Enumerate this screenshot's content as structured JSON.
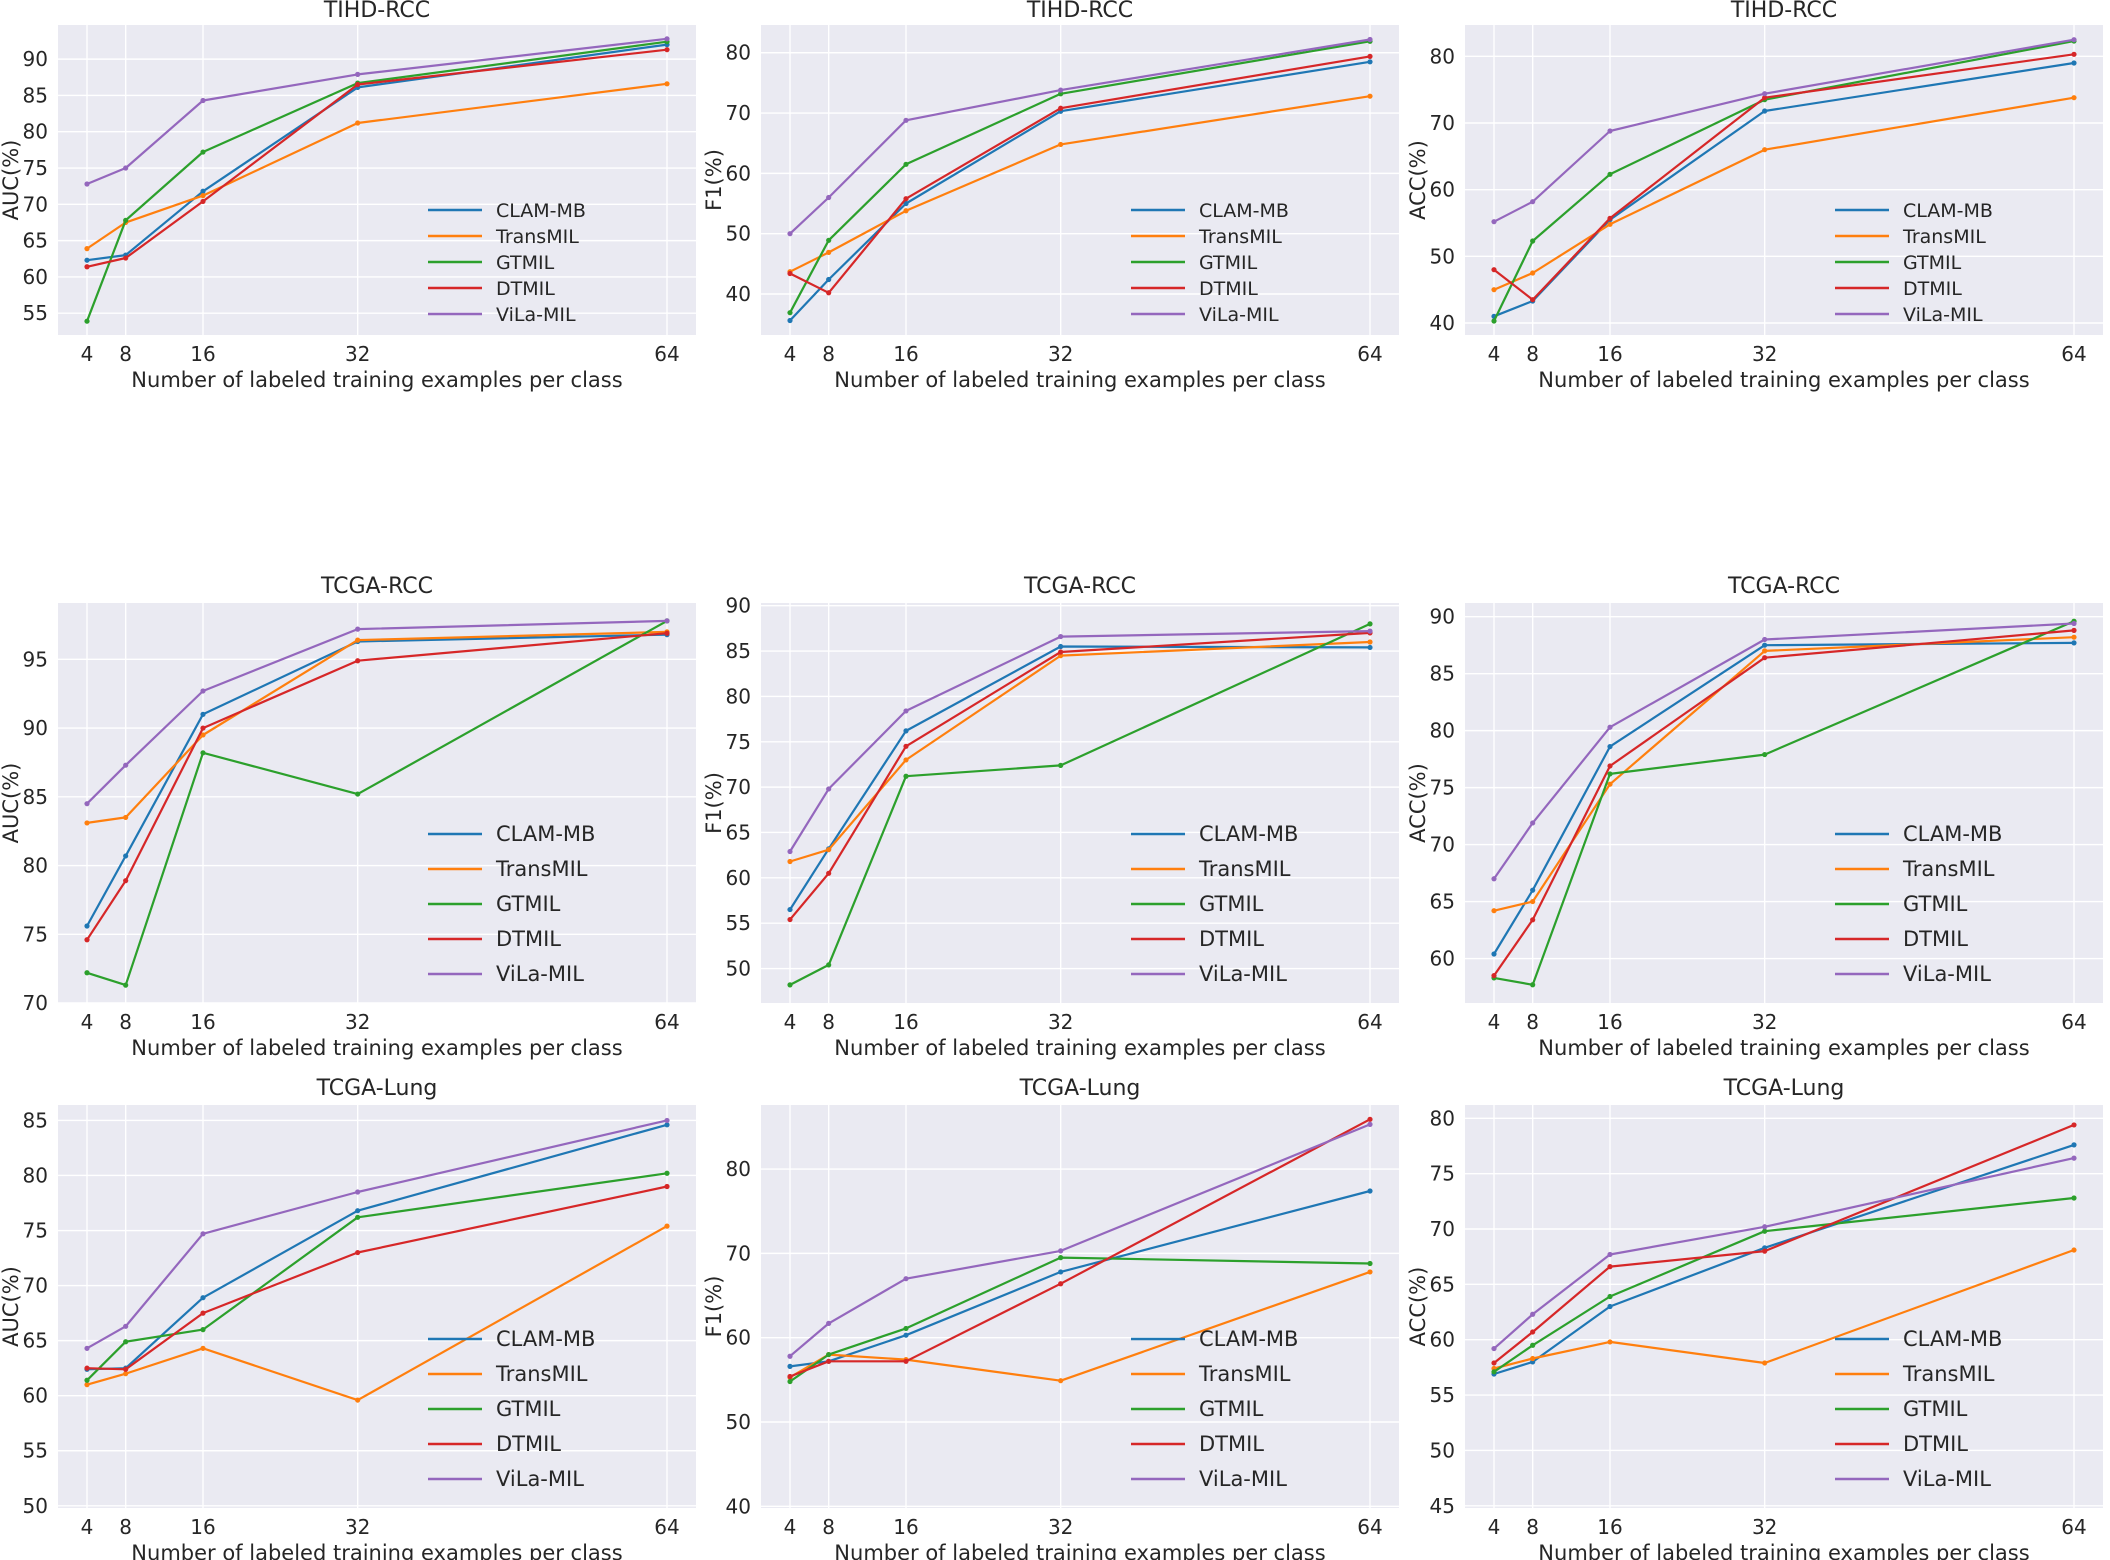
{
  "style": {
    "page_bg": "#ffffff",
    "plot_bg": "#eaeaf2",
    "grid_color": "#ffffff",
    "text_color": "#262626"
  },
  "x_axis": {
    "label": "Number of labeled training examples per class",
    "values": [
      4,
      8,
      16,
      32,
      64
    ],
    "xlim": [
      1,
      67
    ]
  },
  "series": [
    {
      "name": "CLAM-MB",
      "color": "#1f77b4"
    },
    {
      "name": "TransMIL",
      "color": "#ff7f0e"
    },
    {
      "name": "GTMIL",
      "color": "#2ca02c"
    },
    {
      "name": "DTMIL",
      "color": "#d62728"
    },
    {
      "name": "ViLa-MIL",
      "color": "#9467bd"
    }
  ],
  "legend_labels": [
    "CLAM-MB",
    "TransMIL",
    "GTMIL",
    "DTMIL",
    "ViLa-MIL"
  ],
  "chart_data": [
    {
      "type": "line",
      "title": "TIHD-RCC",
      "ylabel": "AUC(%)",
      "x": [
        4,
        8,
        16,
        32,
        64
      ],
      "xlim": [
        1,
        67
      ],
      "ylim": [
        52.0,
        94.7
      ],
      "yticks": [
        55,
        60,
        65,
        70,
        75,
        80,
        85,
        90
      ],
      "legend_position": "lower right",
      "grid": true,
      "series": [
        {
          "name": "CLAM-MB",
          "values": [
            62.3,
            63.0,
            71.8,
            86.1,
            92.0
          ]
        },
        {
          "name": "TransMIL",
          "values": [
            63.9,
            67.5,
            71.2,
            81.2,
            86.6
          ]
        },
        {
          "name": "GTMIL",
          "values": [
            53.9,
            67.8,
            77.2,
            86.7,
            92.4
          ]
        },
        {
          "name": "DTMIL",
          "values": [
            61.4,
            62.6,
            70.4,
            86.5,
            91.3
          ]
        },
        {
          "name": "ViLa-MIL",
          "values": [
            72.8,
            75.0,
            84.3,
            87.9,
            92.8
          ]
        }
      ]
    },
    {
      "type": "line",
      "title": "TIHD-RCC",
      "ylabel": "F1(%)",
      "x": [
        4,
        8,
        16,
        32,
        64
      ],
      "xlim": [
        1,
        67
      ],
      "ylim": [
        33.2,
        84.6
      ],
      "yticks": [
        40,
        50,
        60,
        70,
        80
      ],
      "legend_position": "lower right",
      "grid": true,
      "series": [
        {
          "name": "CLAM-MB",
          "values": [
            35.6,
            42.4,
            55.0,
            70.3,
            78.5
          ]
        },
        {
          "name": "TransMIL",
          "values": [
            43.7,
            46.9,
            53.8,
            64.8,
            72.8
          ]
        },
        {
          "name": "GTMIL",
          "values": [
            36.9,
            48.9,
            61.5,
            73.2,
            81.9
          ]
        },
        {
          "name": "DTMIL",
          "values": [
            43.4,
            40.2,
            55.8,
            70.8,
            79.4
          ]
        },
        {
          "name": "ViLa-MIL",
          "values": [
            50.0,
            56.0,
            68.8,
            73.8,
            82.2
          ]
        }
      ]
    },
    {
      "type": "line",
      "title": "TIHD-RCC",
      "ylabel": "ACC(%)",
      "x": [
        4,
        8,
        16,
        32,
        64
      ],
      "xlim": [
        1,
        67
      ],
      "ylim": [
        38.2,
        84.7
      ],
      "yticks": [
        40,
        50,
        60,
        70,
        80
      ],
      "legend_position": "lower right",
      "grid": true,
      "series": [
        {
          "name": "CLAM-MB",
          "values": [
            41.0,
            43.3,
            55.5,
            71.8,
            79.0
          ]
        },
        {
          "name": "TransMIL",
          "values": [
            45.0,
            47.5,
            54.8,
            66.0,
            73.8
          ]
        },
        {
          "name": "GTMIL",
          "values": [
            40.3,
            52.3,
            62.3,
            73.5,
            82.3
          ]
        },
        {
          "name": "DTMIL",
          "values": [
            48.0,
            43.5,
            55.7,
            73.8,
            80.3
          ]
        },
        {
          "name": "ViLa-MIL",
          "values": [
            55.2,
            58.2,
            68.8,
            74.4,
            82.5
          ]
        }
      ]
    },
    {
      "type": "line",
      "title": "TCGA-RCC",
      "ylabel": "AUC(%)",
      "x": [
        4,
        8,
        16,
        32,
        64
      ],
      "xlim": [
        1,
        67
      ],
      "ylim": [
        70.0,
        99.1
      ],
      "yticks": [
        70,
        75,
        80,
        85,
        90,
        95
      ],
      "legend_position": "lower right",
      "grid": true,
      "series": [
        {
          "name": "CLAM-MB",
          "values": [
            75.6,
            80.7,
            91.0,
            96.3,
            96.8
          ]
        },
        {
          "name": "TransMIL",
          "values": [
            83.1,
            83.5,
            89.5,
            96.4,
            97.0
          ]
        },
        {
          "name": "GTMIL",
          "values": [
            72.2,
            71.3,
            88.2,
            85.2,
            97.8
          ]
        },
        {
          "name": "DTMIL",
          "values": [
            74.6,
            78.9,
            90.0,
            94.9,
            96.9
          ]
        },
        {
          "name": "ViLa-MIL",
          "values": [
            84.5,
            87.3,
            92.7,
            97.2,
            97.8
          ]
        }
      ]
    },
    {
      "type": "line",
      "title": "TCGA-RCC",
      "ylabel": "F1(%)",
      "x": [
        4,
        8,
        16,
        32,
        64
      ],
      "xlim": [
        1,
        67
      ],
      "ylim": [
        46.2,
        90.3
      ],
      "yticks": [
        50,
        55,
        60,
        65,
        70,
        75,
        80,
        85,
        90
      ],
      "legend_position": "lower right",
      "grid": true,
      "series": [
        {
          "name": "CLAM-MB",
          "values": [
            56.5,
            63.2,
            76.2,
            85.5,
            85.4
          ]
        },
        {
          "name": "TransMIL",
          "values": [
            61.8,
            63.1,
            73.0,
            84.5,
            86.0
          ]
        },
        {
          "name": "GTMIL",
          "values": [
            48.2,
            50.4,
            71.2,
            72.4,
            88.0
          ]
        },
        {
          "name": "DTMIL",
          "values": [
            55.4,
            60.5,
            74.5,
            84.9,
            87.0
          ]
        },
        {
          "name": "ViLa-MIL",
          "values": [
            62.9,
            69.8,
            78.4,
            86.6,
            87.2
          ]
        }
      ]
    },
    {
      "type": "line",
      "title": "TCGA-RCC",
      "ylabel": "ACC(%)",
      "x": [
        4,
        8,
        16,
        32,
        64
      ],
      "xlim": [
        1,
        67
      ],
      "ylim": [
        56.1,
        91.2
      ],
      "yticks": [
        60,
        65,
        70,
        75,
        80,
        85,
        90
      ],
      "legend_position": "lower right",
      "grid": true,
      "series": [
        {
          "name": "CLAM-MB",
          "values": [
            60.4,
            66.0,
            78.6,
            87.5,
            87.7
          ]
        },
        {
          "name": "TransMIL",
          "values": [
            64.2,
            65.0,
            75.3,
            87.0,
            88.2
          ]
        },
        {
          "name": "GTMIL",
          "values": [
            58.3,
            57.7,
            76.2,
            77.9,
            89.6
          ]
        },
        {
          "name": "DTMIL",
          "values": [
            58.5,
            63.4,
            76.9,
            86.4,
            88.8
          ]
        },
        {
          "name": "ViLa-MIL",
          "values": [
            67.0,
            71.9,
            80.3,
            88.0,
            89.4
          ]
        }
      ]
    },
    {
      "type": "line",
      "title": "TCGA-Lung",
      "ylabel": "AUC(%)",
      "x": [
        4,
        8,
        16,
        32,
        64
      ],
      "xlim": [
        1,
        67
      ],
      "ylim": [
        49.8,
        86.4
      ],
      "yticks": [
        50,
        55,
        60,
        65,
        70,
        75,
        80,
        85
      ],
      "legend_position": "lower right",
      "grid": true,
      "series": [
        {
          "name": "CLAM-MB",
          "values": [
            62.4,
            62.5,
            68.9,
            76.8,
            84.6
          ]
        },
        {
          "name": "TransMIL",
          "values": [
            61.0,
            62.0,
            64.3,
            59.6,
            75.4
          ]
        },
        {
          "name": "GTMIL",
          "values": [
            61.4,
            64.9,
            66.0,
            76.2,
            80.2
          ]
        },
        {
          "name": "DTMIL",
          "values": [
            62.5,
            62.4,
            67.5,
            73.0,
            79.0
          ]
        },
        {
          "name": "ViLa-MIL",
          "values": [
            64.3,
            66.3,
            74.7,
            78.5,
            85.0
          ]
        }
      ]
    },
    {
      "type": "line",
      "title": "TCGA-Lung",
      "ylabel": "F1(%)",
      "x": [
        4,
        8,
        16,
        32,
        64
      ],
      "xlim": [
        1,
        67
      ],
      "ylim": [
        39.8,
        87.6
      ],
      "yticks": [
        40,
        50,
        60,
        70,
        80
      ],
      "legend_position": "lower right",
      "grid": true,
      "series": [
        {
          "name": "CLAM-MB",
          "values": [
            56.6,
            57.2,
            60.3,
            67.8,
            77.4
          ]
        },
        {
          "name": "TransMIL",
          "values": [
            55.3,
            58.0,
            57.4,
            54.9,
            67.8
          ]
        },
        {
          "name": "GTMIL",
          "values": [
            54.8,
            58.0,
            61.1,
            69.5,
            68.8
          ]
        },
        {
          "name": "DTMIL",
          "values": [
            55.4,
            57.2,
            57.2,
            66.4,
            85.9
          ]
        },
        {
          "name": "ViLa-MIL",
          "values": [
            57.8,
            61.7,
            67.0,
            70.3,
            85.3
          ]
        }
      ]
    },
    {
      "type": "line",
      "title": "TCGA-Lung",
      "ylabel": "ACC(%)",
      "x": [
        4,
        8,
        16,
        32,
        64
      ],
      "xlim": [
        1,
        67
      ],
      "ylim": [
        44.8,
        81.2
      ],
      "yticks": [
        45,
        50,
        55,
        60,
        65,
        70,
        75,
        80
      ],
      "legend_position": "lower right",
      "grid": true,
      "series": [
        {
          "name": "CLAM-MB",
          "values": [
            56.9,
            58.0,
            63.0,
            68.3,
            77.6
          ]
        },
        {
          "name": "TransMIL",
          "values": [
            57.4,
            58.3,
            59.8,
            57.9,
            68.1
          ]
        },
        {
          "name": "GTMIL",
          "values": [
            57.1,
            59.5,
            63.9,
            69.8,
            72.8
          ]
        },
        {
          "name": "DTMIL",
          "values": [
            57.9,
            60.7,
            66.6,
            68.0,
            79.4
          ]
        },
        {
          "name": "ViLa-MIL",
          "values": [
            59.2,
            62.3,
            67.7,
            70.2,
            76.4
          ]
        }
      ]
    }
  ]
}
